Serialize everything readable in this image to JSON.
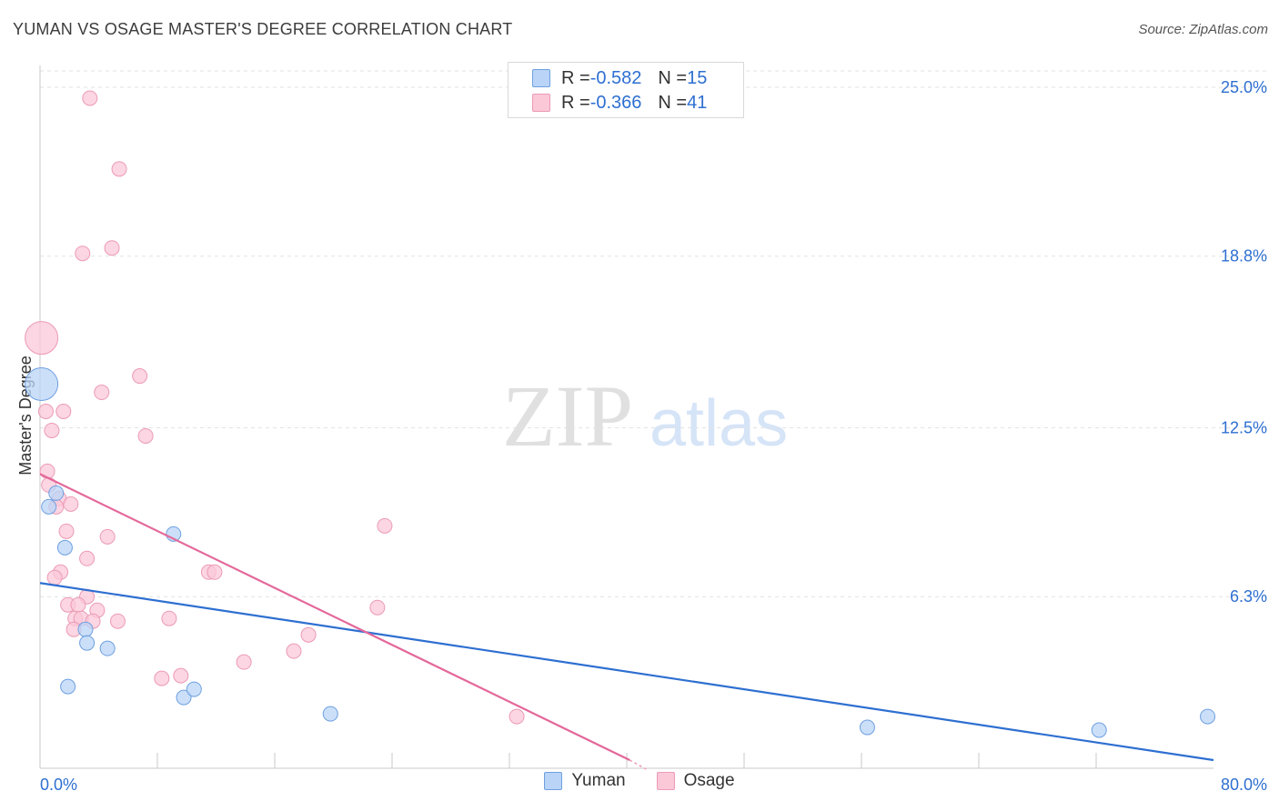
{
  "header": {
    "title": "YUMAN VS OSAGE MASTER'S DEGREE CORRELATION CHART",
    "source": "Source: ZipAtlas.com"
  },
  "legend_top": {
    "rows": [
      {
        "r_label": "R = ",
        "r_value": "-0.582",
        "n_label": "N = ",
        "n_value": "15"
      },
      {
        "r_label": "R = ",
        "r_value": "-0.366",
        "n_label": "N = ",
        "n_value": "41"
      }
    ]
  },
  "legend_bottom": {
    "items": [
      {
        "label": "Yuman"
      },
      {
        "label": "Osage"
      }
    ]
  },
  "watermark": {
    "zip": "ZIP",
    "atlas": "atlas"
  },
  "colors": {
    "blue_fill": "#b9d4f7",
    "blue_stroke": "#6fa0e0",
    "blue_line": "#2e6fd1",
    "pink_fill": "#fbc8d8",
    "pink_stroke": "#ec9ab5",
    "pink_line": "#e4689a",
    "tick_label": "#2e6fd1",
    "grid": "#e2e2e2"
  },
  "chart_data": {
    "type": "scatter",
    "title": "YUMAN VS OSAGE MASTER'S DEGREE CORRELATION CHART",
    "xlabel": "",
    "ylabel": "Master's Degree",
    "xlim": [
      0,
      80
    ],
    "ylim": [
      0,
      25.8
    ],
    "x_tick_labels": [
      {
        "value": 0,
        "label": "0.0%"
      },
      {
        "value": 80,
        "label": "80.0%"
      }
    ],
    "x_minor_ticks": [
      8,
      16,
      24,
      32,
      40,
      48,
      56,
      64,
      72
    ],
    "y_ticks": [
      {
        "value": 6.3,
        "label": "6.3%"
      },
      {
        "value": 12.5,
        "label": "12.5%"
      },
      {
        "value": 18.8,
        "label": "18.8%"
      },
      {
        "value": 25.0,
        "label": "25.0%"
      }
    ],
    "grid": true,
    "legend_position": "top-center",
    "series": [
      {
        "name": "Yuman",
        "r": -0.582,
        "n": 15,
        "points": [
          {
            "x": 0.1,
            "y": 14.1,
            "big": true
          },
          {
            "x": 0.6,
            "y": 9.6
          },
          {
            "x": 1.1,
            "y": 10.1
          },
          {
            "x": 1.7,
            "y": 8.1
          },
          {
            "x": 1.9,
            "y": 3.0
          },
          {
            "x": 3.1,
            "y": 5.1
          },
          {
            "x": 3.2,
            "y": 4.6
          },
          {
            "x": 4.6,
            "y": 4.4
          },
          {
            "x": 9.1,
            "y": 8.6
          },
          {
            "x": 9.8,
            "y": 2.6
          },
          {
            "x": 10.5,
            "y": 2.9
          },
          {
            "x": 19.8,
            "y": 2.0
          },
          {
            "x": 56.4,
            "y": 1.5
          },
          {
            "x": 72.2,
            "y": 1.4
          },
          {
            "x": 79.6,
            "y": 1.9
          }
        ],
        "trend": {
          "x1": 0,
          "y1": 6.8,
          "x2": 80,
          "y2": 0.3
        }
      },
      {
        "name": "Osage",
        "r": -0.366,
        "n": 41,
        "points": [
          {
            "x": 0.1,
            "y": 15.8,
            "big": true
          },
          {
            "x": 3.4,
            "y": 24.6
          },
          {
            "x": 5.4,
            "y": 22.0
          },
          {
            "x": 2.9,
            "y": 18.9
          },
          {
            "x": 4.9,
            "y": 19.1
          },
          {
            "x": 6.8,
            "y": 14.4
          },
          {
            "x": 4.2,
            "y": 13.8
          },
          {
            "x": 0.4,
            "y": 13.1
          },
          {
            "x": 1.6,
            "y": 13.1
          },
          {
            "x": 0.8,
            "y": 12.4
          },
          {
            "x": 7.2,
            "y": 12.2
          },
          {
            "x": 0.5,
            "y": 10.9
          },
          {
            "x": 0.6,
            "y": 10.4
          },
          {
            "x": 1.3,
            "y": 9.9
          },
          {
            "x": 2.1,
            "y": 9.7
          },
          {
            "x": 1.1,
            "y": 9.6
          },
          {
            "x": 1.8,
            "y": 8.7
          },
          {
            "x": 4.6,
            "y": 8.5
          },
          {
            "x": 23.5,
            "y": 8.9
          },
          {
            "x": 3.2,
            "y": 7.7
          },
          {
            "x": 1.4,
            "y": 7.2
          },
          {
            "x": 1.0,
            "y": 7.0
          },
          {
            "x": 11.5,
            "y": 7.2
          },
          {
            "x": 11.9,
            "y": 7.2
          },
          {
            "x": 3.2,
            "y": 6.3
          },
          {
            "x": 1.9,
            "y": 6.0
          },
          {
            "x": 2.6,
            "y": 6.0
          },
          {
            "x": 3.9,
            "y": 5.8
          },
          {
            "x": 23.0,
            "y": 5.9
          },
          {
            "x": 2.4,
            "y": 5.5
          },
          {
            "x": 2.8,
            "y": 5.5
          },
          {
            "x": 3.6,
            "y": 5.4
          },
          {
            "x": 5.3,
            "y": 5.4
          },
          {
            "x": 8.8,
            "y": 5.5
          },
          {
            "x": 2.3,
            "y": 5.1
          },
          {
            "x": 18.3,
            "y": 4.9
          },
          {
            "x": 17.3,
            "y": 4.3
          },
          {
            "x": 13.9,
            "y": 3.9
          },
          {
            "x": 8.3,
            "y": 3.3
          },
          {
            "x": 9.6,
            "y": 3.4
          },
          {
            "x": 32.5,
            "y": 1.9
          }
        ],
        "trend": {
          "x1": 0,
          "y1": 10.8,
          "x2": 40.2,
          "y2": 0.3
        }
      }
    ]
  }
}
